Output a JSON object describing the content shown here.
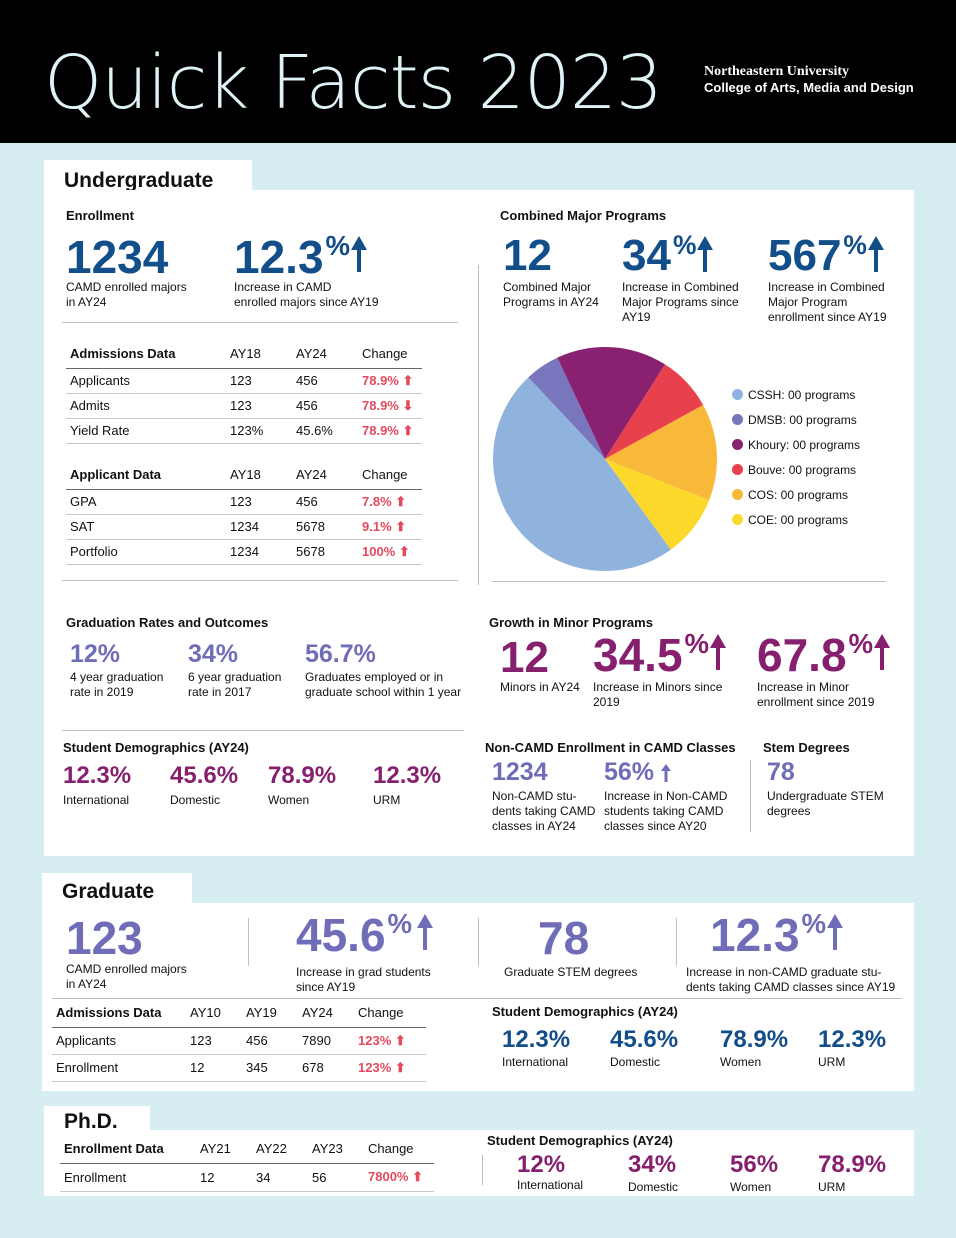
{
  "header": {
    "title": "Quick Facts 2023",
    "university": "Northeastern University",
    "college": "College of Arts, Media and Design"
  },
  "colors": {
    "navy": "#124e8a",
    "plum": "#86206e",
    "lavender": "#6f6cb8",
    "red": "#e34a5d"
  },
  "undergrad": {
    "tab": "Undergraduate",
    "enrollment": {
      "heading": "Enrollment",
      "majors": {
        "value": "1234",
        "label1": "CAMD enrolled majors",
        "label2": "in AY24"
      },
      "increase": {
        "value": "12.3",
        "unit": "%",
        "label1": "Increase in CAMD",
        "label2": "enrolled majors since AY19"
      }
    },
    "admissions": {
      "headers": [
        "Admissions Data",
        "AY18",
        "AY24",
        "Change"
      ],
      "rows": [
        [
          "Applicants",
          "123",
          "456",
          "78.9%"
        ],
        [
          "Admits",
          "123",
          "456",
          "78.9%"
        ],
        [
          "Yield Rate",
          "123%",
          "45.6%",
          "78.9%"
        ]
      ]
    },
    "applicant": {
      "headers": [
        "Applicant Data",
        "AY18",
        "AY24",
        "Change"
      ],
      "rows": [
        [
          "GPA",
          "123",
          "456",
          "7.8%"
        ],
        [
          "SAT",
          "1234",
          "5678",
          "9.1%"
        ],
        [
          "Portfolio",
          "1234",
          "5678",
          "100%"
        ]
      ]
    },
    "combined": {
      "heading": "Combined Major Programs",
      "programs": {
        "value": "12",
        "label1": "Combined Major",
        "label2": "Programs in AY24"
      },
      "increase": {
        "value": "34",
        "unit": "%",
        "label1": "Increase in Combined",
        "label2": "Major Programs since",
        "label3": "AY19"
      },
      "enrollment": {
        "value": "567",
        "unit": "%",
        "label1": "Increase in Combined",
        "label2": "Major Program",
        "label3": "enrollment since AY19"
      }
    },
    "graduation": {
      "heading": "Graduation Rates and Outcomes",
      "items": [
        {
          "value": "12%",
          "label1": "4 year graduation",
          "label2": "rate in 2019"
        },
        {
          "value": "34%",
          "label1": "6 year graduation",
          "label2": "rate in 2017"
        },
        {
          "value": "56.7%",
          "label1": "Graduates employed or in",
          "label2": "graduate school within 1 year"
        }
      ]
    },
    "minors": {
      "heading": "Growth in Minor Programs",
      "count": {
        "value": "12",
        "label": "Minors in AY24"
      },
      "increase": {
        "value": "34.5",
        "unit": "%",
        "label1": "Increase in Minors since",
        "label2": "2019"
      },
      "enrollment": {
        "value": "67.8",
        "unit": "%",
        "label1": "Increase in Minor",
        "label2": "enrollment since 2019"
      }
    },
    "demographics": {
      "heading": "Student Demographics (AY24)",
      "items": [
        {
          "value": "12.3%",
          "label": "International"
        },
        {
          "value": "45.6%",
          "label": "Domestic"
        },
        {
          "value": "78.9%",
          "label": "Women"
        },
        {
          "value": "12.3%",
          "label": "URM"
        }
      ]
    },
    "noncamd": {
      "heading": "Non-CAMD Enrollment in CAMD Classes",
      "count": {
        "value": "1234",
        "label1": "Non-CAMD stu-",
        "label2": "dents taking CAMD",
        "label3": "classes in AY24"
      },
      "increase": {
        "value": "56%",
        "label1": "Increase in Non-CAMD",
        "label2": "students taking CAMD",
        "label3": "classes since AY20"
      }
    },
    "stem": {
      "heading": "Stem Degrees",
      "value": "78",
      "label1": "Undergraduate STEM",
      "label2": "degrees"
    }
  },
  "chart_data": {
    "type": "pie",
    "title": "",
    "series": [
      {
        "name": "CSSH: 00 programs",
        "value": 48,
        "color": "#8fb3dc"
      },
      {
        "name": "DMSB: 00 programs",
        "value": 5,
        "color": "#7876bd"
      },
      {
        "name": "Khoury: 00 programs",
        "value": 16,
        "color": "#8a2070"
      },
      {
        "name": "Bouve: 00 programs",
        "value": 8,
        "color": "#e8404c"
      },
      {
        "name": "COS: 00 programs",
        "value": 14,
        "color": "#f8b83a"
      },
      {
        "name": "COE: 00 programs",
        "value": 9,
        "color": "#fcd82b"
      }
    ],
    "legend_position": "right"
  },
  "graduate": {
    "tab": "Graduate",
    "majors": {
      "value": "123",
      "label1": "CAMD enrolled majors",
      "label2": "in AY24"
    },
    "increase": {
      "value": "45.6",
      "unit": "%",
      "label1": "Increase in grad students",
      "label2": "since AY19"
    },
    "stem": {
      "value": "78",
      "label": "Graduate STEM degrees"
    },
    "noncamd": {
      "value": "12.3",
      "unit": "%",
      "label1": "Increase in non-CAMD graduate stu-",
      "label2": "dents taking CAMD classes since AY19"
    },
    "admissions": {
      "headers": [
        "Admissions Data",
        "AY10",
        "AY19",
        "AY24",
        "Change"
      ],
      "rows": [
        [
          "Applicants",
          "123",
          "456",
          "7890",
          "123%"
        ],
        [
          "Enrollment",
          "12",
          "345",
          "678",
          "123%"
        ]
      ]
    },
    "demographics": {
      "heading": "Student Demographics (AY24)",
      "items": [
        {
          "value": "12.3%",
          "label": "International"
        },
        {
          "value": "45.6%",
          "label": "Domestic"
        },
        {
          "value": "78.9%",
          "label": "Women"
        },
        {
          "value": "12.3%",
          "label": "URM"
        }
      ]
    }
  },
  "phd": {
    "tab": "Ph.D.",
    "enrollment": {
      "headers": [
        "Enrollment Data",
        "AY21",
        "AY22",
        "AY23",
        "Change"
      ],
      "rows": [
        [
          "Enrollment",
          "12",
          "34",
          "56",
          "7800%"
        ]
      ]
    },
    "demographics": {
      "heading": "Student Demographics (AY24)",
      "items": [
        {
          "value": "12%",
          "label": "International"
        },
        {
          "value": "34%",
          "label": "Domestic"
        },
        {
          "value": "56%",
          "label": "Women"
        },
        {
          "value": "78.9%",
          "label": "URM"
        }
      ]
    }
  }
}
